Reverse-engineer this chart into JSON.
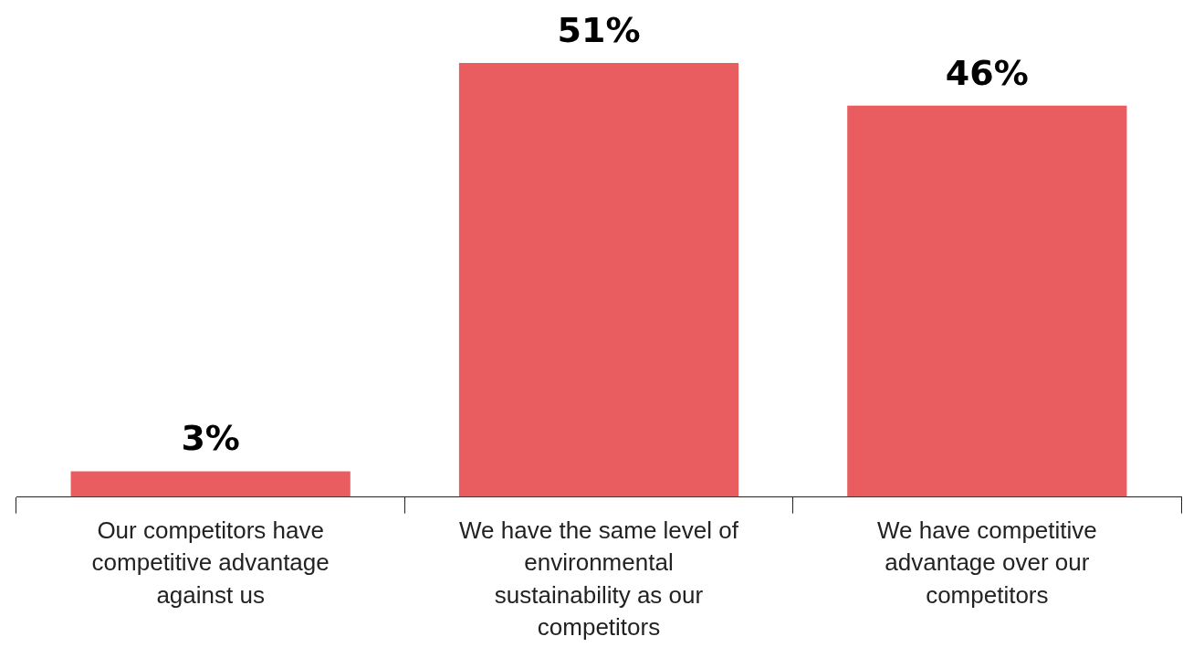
{
  "chart_data": {
    "type": "bar",
    "relative": false,
    "categories": [
      "Our competitors have competitive advantage against us",
      "We have the same level of environmental sustainability as our competitors",
      "We have competitive advantage over our competitors"
    ],
    "values": [
      3,
      51,
      46
    ],
    "color": "#e95c5f",
    "value_labels": [
      "3%",
      "51%",
      "46%"
    ],
    "grid": false,
    "legend": false
  }
}
